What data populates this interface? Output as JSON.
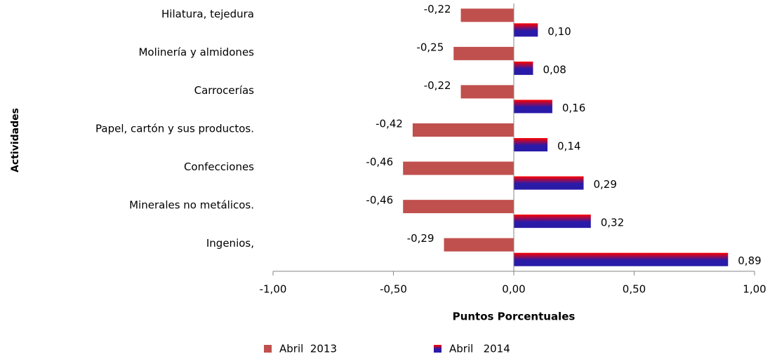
{
  "chart_data": {
    "type": "bar",
    "orientation": "horizontal",
    "x_label": "Puntos Porcentuales",
    "y_label": "Actividades",
    "categories": [
      "Hilatura, tejedura",
      "Molinería y almidones",
      "Carrocerías",
      "Papel, cartón y sus productos.",
      "Confecciones",
      "Minerales no metálicos.",
      "Ingenios,"
    ],
    "series": [
      {
        "name": "Abril  2013",
        "color": "#c0504d",
        "values": [
          -0.22,
          -0.25,
          -0.22,
          -0.42,
          -0.46,
          -0.46,
          -0.29
        ],
        "value_labels": [
          "-0,22",
          "-0,25",
          "-0,22",
          "-0,42",
          "-0,46",
          "-0,46",
          "-0,29"
        ]
      },
      {
        "name": "Abril   2014",
        "color": "#2a1aa8",
        "values": [
          0.1,
          0.08,
          0.16,
          0.14,
          0.29,
          0.32,
          0.89
        ],
        "value_labels": [
          "0,10",
          "0,08",
          "0,16",
          "0,14",
          "0,29",
          "0,32",
          "0,89"
        ]
      }
    ],
    "xlim": [
      -1,
      1
    ],
    "xticks": [
      {
        "value": -1,
        "label": "-1,00"
      },
      {
        "value": -0.5,
        "label": "-0,50"
      },
      {
        "value": 0,
        "label": "0,00"
      },
      {
        "value": 0.5,
        "label": "0,50"
      },
      {
        "value": 1,
        "label": "1,00"
      }
    ]
  }
}
